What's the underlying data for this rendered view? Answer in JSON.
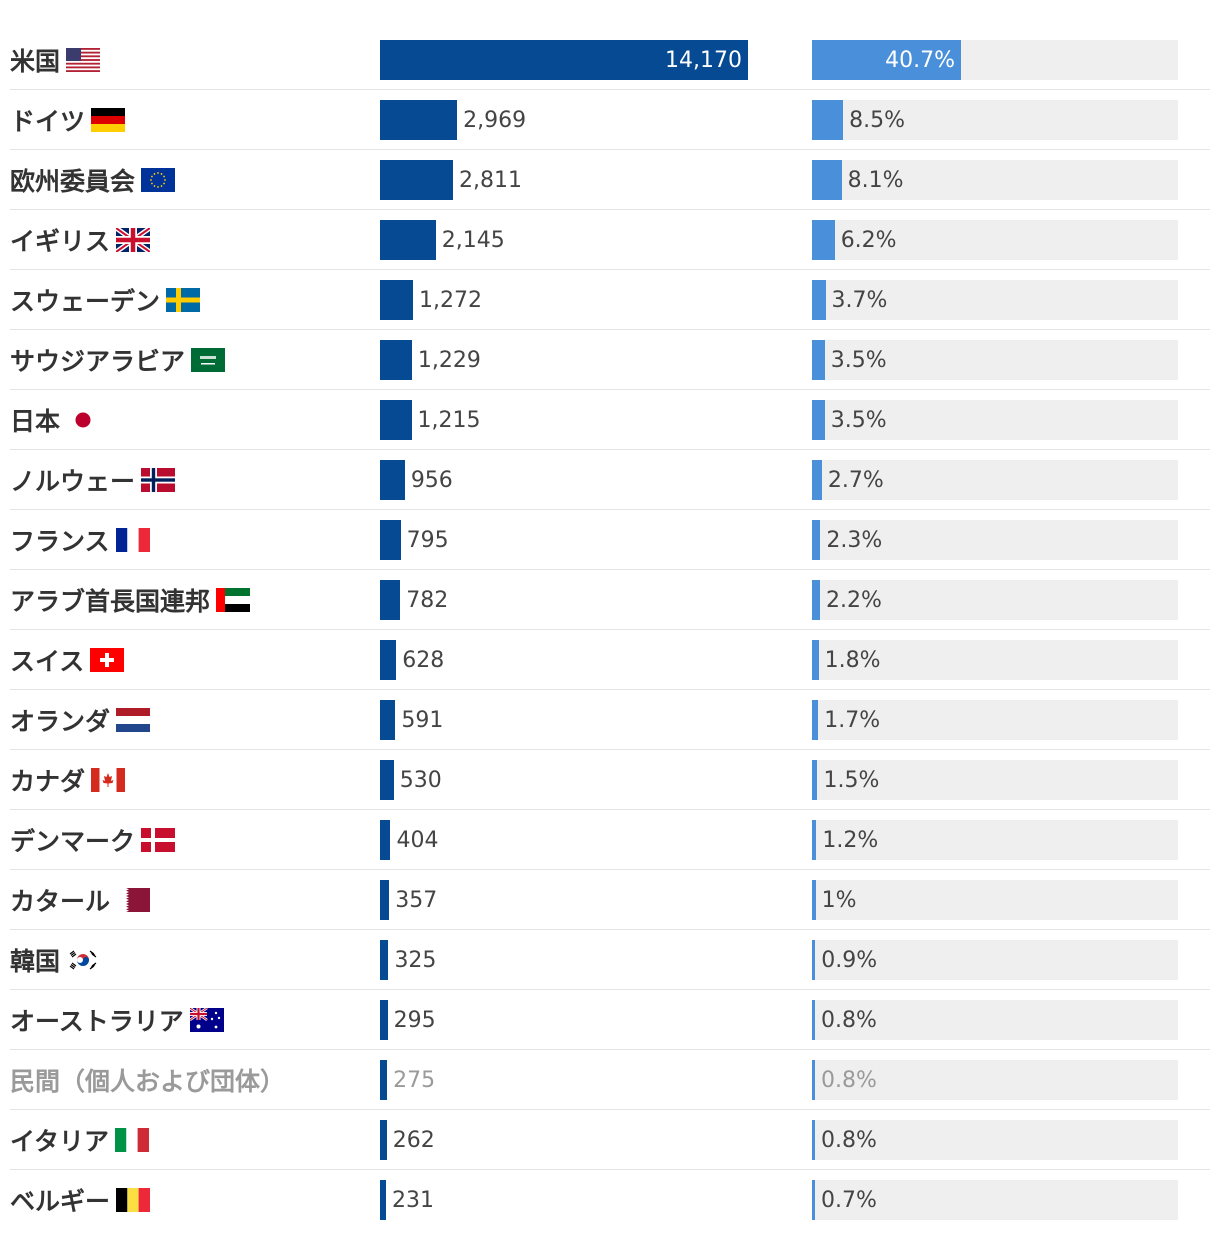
{
  "chart_data": {
    "type": "bar",
    "title": "",
    "xlabel": "",
    "ylabel": "",
    "grid": false,
    "legend": "none",
    "value_max": 14170,
    "percent_max": 100,
    "colors": {
      "value_bar": "#054a92",
      "percent_bar": "#4a8fd9",
      "percent_track": "#efefef",
      "label_text": "#333333",
      "muted_text": "#9a9a9a"
    },
    "rows": [
      {
        "label": "米国",
        "flag": "usa-flag-icon",
        "value": 14170,
        "value_label": "14,170",
        "percent": 40.7,
        "percent_label": "40.7%"
      },
      {
        "label": "ドイツ",
        "flag": "germany-flag-icon",
        "value": 2969,
        "value_label": "2,969",
        "percent": 8.5,
        "percent_label": "8.5%"
      },
      {
        "label": "欧州委員会",
        "flag": "eu-flag-icon",
        "value": 2811,
        "value_label": "2,811",
        "percent": 8.1,
        "percent_label": "8.1%"
      },
      {
        "label": "イギリス",
        "flag": "uk-flag-icon",
        "value": 2145,
        "value_label": "2,145",
        "percent": 6.2,
        "percent_label": "6.2%"
      },
      {
        "label": "スウェーデン",
        "flag": "sweden-flag-icon",
        "value": 1272,
        "value_label": "1,272",
        "percent": 3.7,
        "percent_label": "3.7%"
      },
      {
        "label": "サウジアラビア",
        "flag": "saudi-arabia-flag-icon",
        "value": 1229,
        "value_label": "1,229",
        "percent": 3.5,
        "percent_label": "3.5%"
      },
      {
        "label": "日本",
        "flag": "japan-flag-icon",
        "value": 1215,
        "value_label": "1,215",
        "percent": 3.5,
        "percent_label": "3.5%"
      },
      {
        "label": "ノルウェー",
        "flag": "norway-flag-icon",
        "value": 956,
        "value_label": "956",
        "percent": 2.7,
        "percent_label": "2.7%"
      },
      {
        "label": "フランス",
        "flag": "france-flag-icon",
        "value": 795,
        "value_label": "795",
        "percent": 2.3,
        "percent_label": "2.3%"
      },
      {
        "label": "アラブ首長国連邦",
        "flag": "uae-flag-icon",
        "value": 782,
        "value_label": "782",
        "percent": 2.2,
        "percent_label": "2.2%"
      },
      {
        "label": "スイス",
        "flag": "switzerland-flag-icon",
        "value": 628,
        "value_label": "628",
        "percent": 1.8,
        "percent_label": "1.8%"
      },
      {
        "label": "オランダ",
        "flag": "netherlands-flag-icon",
        "value": 591,
        "value_label": "591",
        "percent": 1.7,
        "percent_label": "1.7%"
      },
      {
        "label": "カナダ",
        "flag": "canada-flag-icon",
        "value": 530,
        "value_label": "530",
        "percent": 1.5,
        "percent_label": "1.5%"
      },
      {
        "label": "デンマーク",
        "flag": "denmark-flag-icon",
        "value": 404,
        "value_label": "404",
        "percent": 1.2,
        "percent_label": "1.2%"
      },
      {
        "label": "カタール",
        "flag": "qatar-flag-icon",
        "value": 357,
        "value_label": "357",
        "percent": 1.0,
        "percent_label": "1%"
      },
      {
        "label": "韓国",
        "flag": "south-korea-flag-icon",
        "value": 325,
        "value_label": "325",
        "percent": 0.9,
        "percent_label": "0.9%"
      },
      {
        "label": "オーストラリア",
        "flag": "australia-flag-icon",
        "value": 295,
        "value_label": "295",
        "percent": 0.8,
        "percent_label": "0.8%"
      },
      {
        "label": "民間（個人および団体）",
        "flag": "",
        "muted": true,
        "value": 275,
        "value_label": "275",
        "percent": 0.8,
        "percent_label": "0.8%"
      },
      {
        "label": "イタリア",
        "flag": "italy-flag-icon",
        "value": 262,
        "value_label": "262",
        "percent": 0.8,
        "percent_label": "0.8%"
      },
      {
        "label": "ベルギー",
        "flag": "belgium-flag-icon",
        "value": 231,
        "value_label": "231",
        "percent": 0.7,
        "percent_label": "0.7%"
      }
    ]
  }
}
